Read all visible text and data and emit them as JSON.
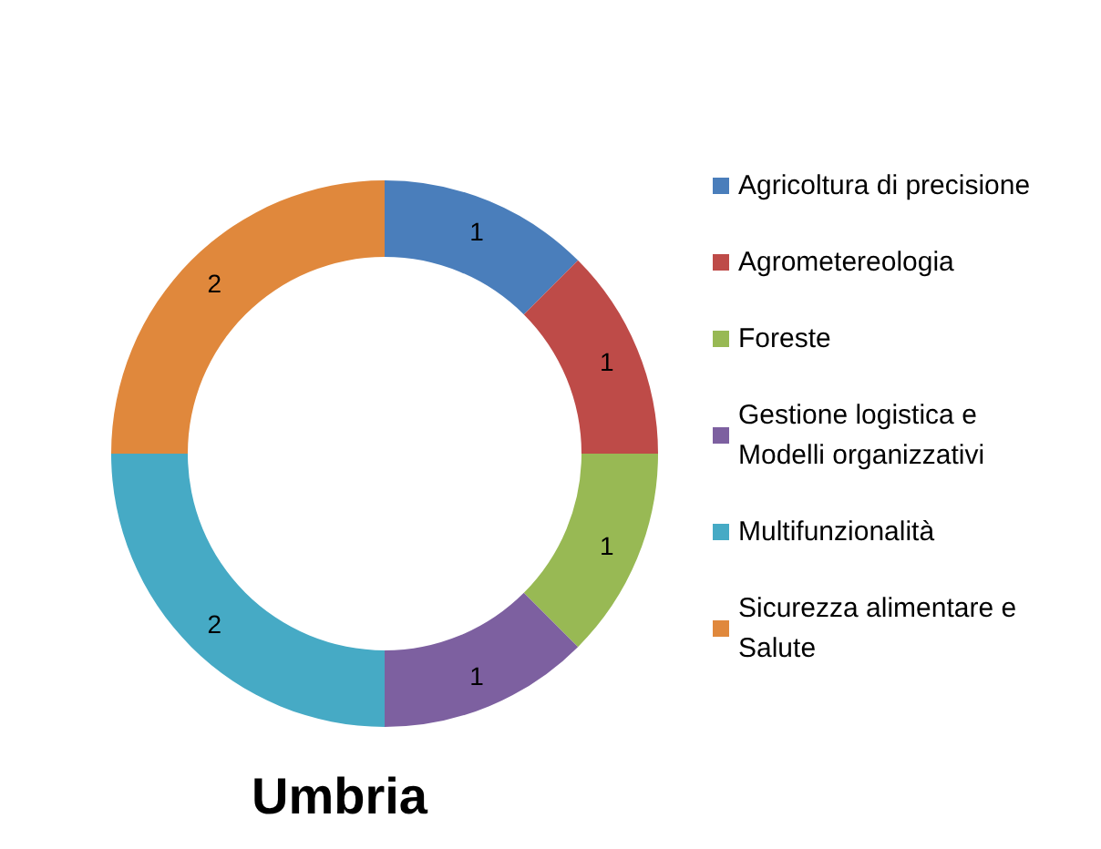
{
  "chart_data": {
    "type": "donut",
    "title": "Umbria",
    "categories": [
      "Agricoltura di precisione",
      "Agrometereologia",
      "Foreste",
      "Gestione logistica e Modelli organizzativi",
      "Multifunzionalità",
      "Sicurezza alimentare e Salute"
    ],
    "values": [
      1,
      1,
      1,
      1,
      2,
      2
    ],
    "colors": [
      "#4a7ebb",
      "#be4b48",
      "#98b954",
      "#7d60a0",
      "#46aac5",
      "#e0883c"
    ],
    "data_labels": true,
    "legend": "right"
  }
}
